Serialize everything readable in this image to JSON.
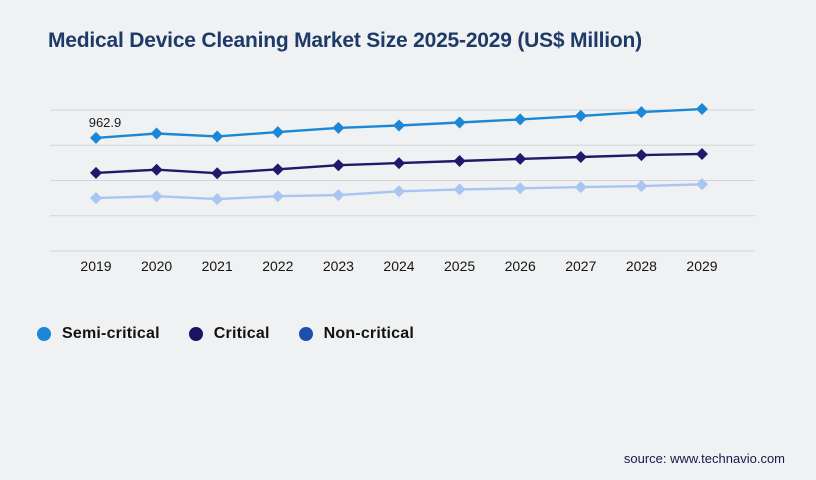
{
  "page": {
    "background": "#f0f1f2"
  },
  "header": {
    "title": "Medical Device Cleaning Market Size 2025-2029 (US$ Million)",
    "title_color": "#1e3a68"
  },
  "chart_data": {
    "type": "line",
    "title": "Medical Device Cleaning Market Size 2025-2029 (US$ Million)",
    "x": [
      "2019",
      "2020",
      "2021",
      "2022",
      "2023",
      "2024",
      "2025",
      "2026",
      "2027",
      "2028",
      "2029"
    ],
    "series": [
      {
        "name": "Semi-critical",
        "line_color": "#1b87d6",
        "legend_color": "#1b87d6",
        "marker": "diamond",
        "values": [
          962.9,
          1000,
          975,
          1012,
          1048,
          1068,
          1094,
          1120,
          1150,
          1182,
          1208
        ]
      },
      {
        "name": "Critical",
        "line_color": "#1e1969",
        "legend_color": "#1b1464",
        "marker": "diamond",
        "values": [
          665,
          692,
          662,
          695,
          730,
          748,
          766,
          784,
          800,
          816,
          826
        ]
      },
      {
        "name": "Non-critical",
        "line_color": "#a9c5f2",
        "legend_color": "#1d4fb0",
        "marker": "diamond",
        "values": [
          450,
          466,
          442,
          466,
          476,
          508,
          524,
          534,
          544,
          552,
          568
        ]
      }
    ],
    "annotations": [
      {
        "series_index": 0,
        "point_index": 0,
        "text": "962.9"
      }
    ],
    "ylim": [
      0,
      1200
    ],
    "gridline_values": [
      0,
      300,
      600,
      900,
      1200
    ],
    "grid_color": "#d2d5d9",
    "grid_on": true,
    "y_axis_labels_shown": false,
    "legend_position": "bottom-left"
  },
  "footer": {
    "source_label": "source: www.technavio.com"
  }
}
